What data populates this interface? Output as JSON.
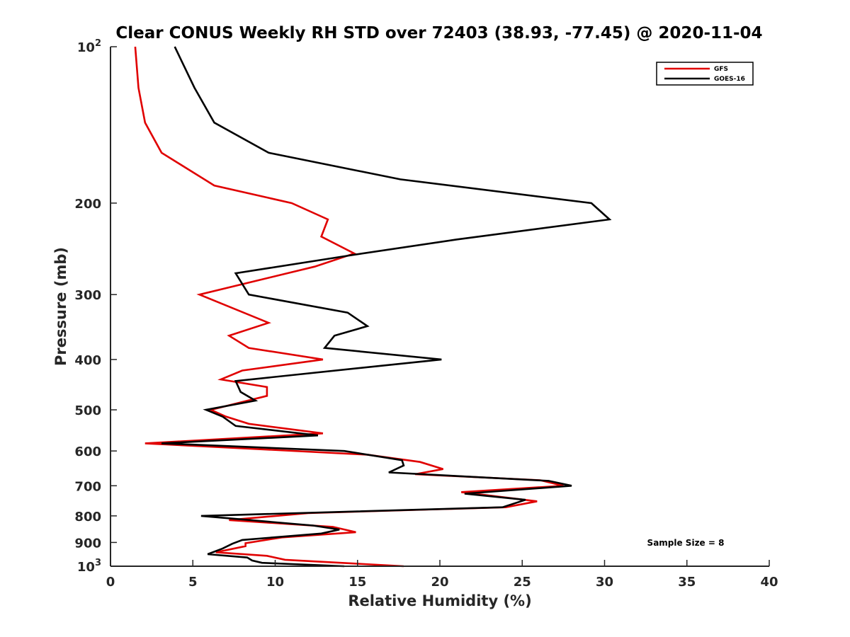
{
  "chart_data": {
    "type": "line",
    "title": "Clear CONUS Weekly RH STD over 72403 (38.93, -77.45) @ 2020-11-04",
    "xlabel": "Relative Humidity (%)",
    "ylabel": "Pressure (mb)",
    "xlim": [
      0,
      40
    ],
    "ylim": [
      100,
      1000
    ],
    "y_scale": "log",
    "y_reversed": true,
    "grid": false,
    "legend_position": "top-right",
    "x_ticks": [
      "0",
      "5",
      "10",
      "15",
      "20",
      "25",
      "30",
      "35",
      "40"
    ],
    "y_ticks": [
      {
        "value": 100,
        "base": "10",
        "exp": "2"
      },
      {
        "value": 200,
        "base": "200",
        "exp": ""
      },
      {
        "value": 300,
        "base": "300",
        "exp": ""
      },
      {
        "value": 400,
        "base": "400",
        "exp": ""
      },
      {
        "value": 500,
        "base": "500",
        "exp": ""
      },
      {
        "value": 600,
        "base": "600",
        "exp": ""
      },
      {
        "value": 700,
        "base": "700",
        "exp": ""
      },
      {
        "value": 800,
        "base": "800",
        "exp": ""
      },
      {
        "value": 900,
        "base": "900",
        "exp": ""
      },
      {
        "value": 1000,
        "base": "10",
        "exp": "3"
      }
    ],
    "annotation": "Sample Size = 8",
    "series": [
      {
        "name": "GFS",
        "color": "#e00000",
        "points": [
          [
            1.5,
            100
          ],
          [
            1.7,
            120
          ],
          [
            2.1,
            140
          ],
          [
            3.1,
            160
          ],
          [
            6.3,
            185
          ],
          [
            11.0,
            200
          ],
          [
            13.2,
            215
          ],
          [
            12.8,
            232
          ],
          [
            14.8,
            250
          ],
          [
            12.4,
            265
          ],
          [
            5.4,
            300
          ],
          [
            9.6,
            340
          ],
          [
            7.2,
            360
          ],
          [
            8.4,
            380
          ],
          [
            12.9,
            400
          ],
          [
            8.0,
            420
          ],
          [
            6.7,
            437
          ],
          [
            9.5,
            452
          ],
          [
            9.5,
            470
          ],
          [
            6.1,
            500
          ],
          [
            7.0,
            515
          ],
          [
            8.4,
            532
          ],
          [
            12.9,
            555
          ],
          [
            2.1,
            580
          ],
          [
            15.6,
            610
          ],
          [
            18.8,
            630
          ],
          [
            20.2,
            650
          ],
          [
            18.5,
            665
          ],
          [
            26.1,
            683
          ],
          [
            27.5,
            700
          ],
          [
            21.3,
            720
          ],
          [
            25.9,
            750
          ],
          [
            24.0,
            770
          ],
          [
            12.0,
            790
          ],
          [
            7.2,
            815
          ],
          [
            13.5,
            840
          ],
          [
            14.9,
            860
          ],
          [
            10.4,
            880
          ],
          [
            8.2,
            903
          ],
          [
            8.2,
            915
          ],
          [
            6.4,
            940
          ],
          [
            9.5,
            955
          ],
          [
            10.6,
            972
          ],
          [
            17.8,
            1000
          ]
        ]
      },
      {
        "name": "GOES-16",
        "color": "#000000",
        "points": [
          [
            3.9,
            100
          ],
          [
            5.1,
            120
          ],
          [
            6.3,
            140
          ],
          [
            9.6,
            160
          ],
          [
            17.6,
            180
          ],
          [
            29.2,
            200
          ],
          [
            30.3,
            215
          ],
          [
            21.0,
            235
          ],
          [
            14.6,
            252
          ],
          [
            7.6,
            273
          ],
          [
            8.4,
            300
          ],
          [
            14.4,
            325
          ],
          [
            15.6,
            345
          ],
          [
            13.6,
            360
          ],
          [
            13.0,
            380
          ],
          [
            20.1,
            400
          ],
          [
            7.6,
            440
          ],
          [
            7.9,
            462
          ],
          [
            8.8,
            480
          ],
          [
            5.8,
            500
          ],
          [
            6.8,
            515
          ],
          [
            7.6,
            537
          ],
          [
            12.6,
            560
          ],
          [
            3.1,
            580
          ],
          [
            14.2,
            600
          ],
          [
            17.7,
            625
          ],
          [
            17.8,
            640
          ],
          [
            16.9,
            660
          ],
          [
            26.6,
            685
          ],
          [
            28.0,
            700
          ],
          [
            21.5,
            725
          ],
          [
            25.2,
            745
          ],
          [
            23.8,
            770
          ],
          [
            5.5,
            800
          ],
          [
            12.3,
            835
          ],
          [
            13.9,
            850
          ],
          [
            12.8,
            865
          ],
          [
            8.0,
            890
          ],
          [
            7.4,
            905
          ],
          [
            6.8,
            925
          ],
          [
            5.9,
            948
          ],
          [
            8.3,
            962
          ],
          [
            8.6,
            975
          ],
          [
            9.2,
            985
          ],
          [
            14.2,
            1000
          ]
        ]
      }
    ]
  }
}
